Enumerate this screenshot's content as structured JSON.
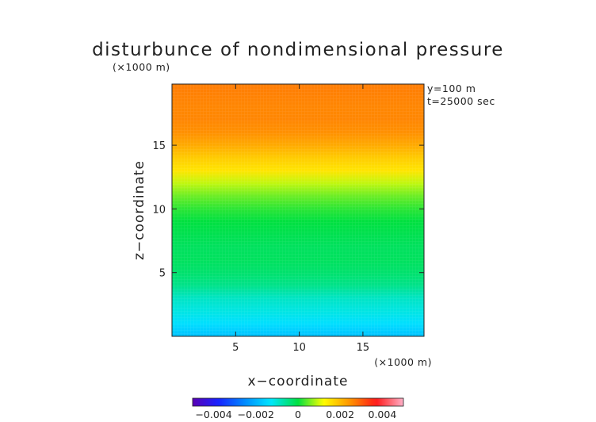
{
  "chart_data": {
    "type": "heatmap",
    "title": "disturbunce of nondimensional pressure",
    "xlabel": "x−coordinate",
    "ylabel": "z−coordinate",
    "x_unit_label": "(×1000 m)",
    "y_unit_label": "(×1000 m)",
    "annotations": [
      "y=100  m",
      "t=25000 sec"
    ],
    "xlim": [
      0,
      19.8
    ],
    "ylim": [
      0,
      19.8
    ],
    "x_ticks": [
      5,
      10,
      15
    ],
    "y_ticks": [
      5,
      10,
      15
    ],
    "x_tick_labels": [
      "5",
      "10",
      "15"
    ],
    "y_tick_labels": [
      "5",
      "10",
      "15"
    ],
    "colorbar": {
      "range": [
        -0.005,
        0.005
      ],
      "ticks": [
        -0.004,
        -0.002,
        0,
        0.002,
        0.004
      ],
      "tick_labels": [
        "−0.004",
        "−0.002",
        "0",
        "0.002",
        "0.004"
      ],
      "colormap": "rainbow (purple-blue-cyan-green-yellow-orange-red-pink)"
    },
    "field_profile_by_z": {
      "z": [
        0.0,
        1.0,
        2.0,
        3.0,
        4.0,
        5.0,
        6.0,
        7.0,
        8.0,
        9.0,
        10.0,
        11.0,
        12.0,
        13.0,
        14.0,
        15.0,
        16.0,
        17.0,
        18.0,
        19.8
      ],
      "value": [
        -0.0018,
        -0.0014,
        -0.0011,
        -0.0009,
        -0.0005,
        -0.0003,
        -0.0002,
        -0.0002,
        -0.0001,
        0.0,
        0.0002,
        0.0005,
        0.0009,
        0.0015,
        0.0018,
        0.0022,
        0.0025,
        0.0026,
        0.0026,
        0.0027
      ]
    },
    "x_dependence": "none (horizontally uniform)"
  }
}
